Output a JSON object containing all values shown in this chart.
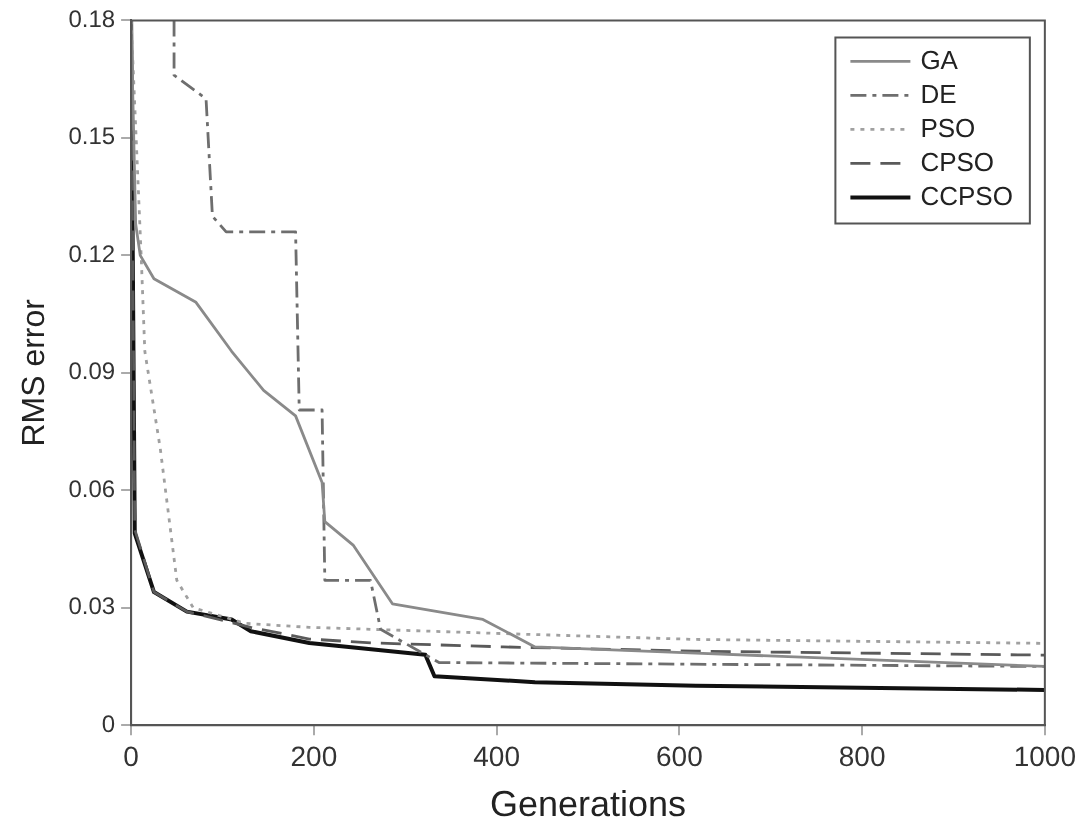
{
  "chart_data": {
    "type": "line",
    "xlabel": "Generations",
    "ylabel": "RMS error",
    "xlim": [
      0,
      1000
    ],
    "xticks": [
      0,
      200,
      400,
      600,
      800,
      1000
    ],
    "ylim": [
      0,
      0.18
    ],
    "yticks": [
      0,
      0.03,
      0.06,
      0.09,
      0.12,
      0.15,
      0.18
    ],
    "grid": false,
    "legend": "top right",
    "series": [
      {
        "name": "GA",
        "color": "#8a8a8a",
        "line_style": "solid",
        "x": [
          0,
          5,
          10,
          25,
          71,
          110,
          145,
          180,
          209,
          212,
          243,
          286,
          385,
          442,
          618,
          1000
        ],
        "values": [
          0.18,
          0.128,
          0.12,
          0.114,
          0.108,
          0.0955,
          0.0855,
          0.079,
          0.062,
          0.052,
          0.046,
          0.031,
          0.027,
          0.02,
          0.0184,
          0.015
        ]
      },
      {
        "name": "DE",
        "color": "#6e6e6e",
        "line_style": "dashdot",
        "x": [
          47,
          47,
          82,
          89,
          104,
          180,
          184,
          209,
          212,
          262,
          273,
          337,
          1000
        ],
        "values": [
          0.18,
          0.166,
          0.16,
          0.13,
          0.126,
          0.126,
          0.0805,
          0.0805,
          0.037,
          0.037,
          0.0245,
          0.016,
          0.015
        ]
      },
      {
        "name": "PSO",
        "color": "#a0a0a0",
        "line_style": "dotted",
        "x": [
          0,
          11,
          15,
          32,
          50,
          68,
          125,
          195,
          407,
          618,
          1000
        ],
        "values": [
          0.18,
          0.12,
          0.0955,
          0.0705,
          0.037,
          0.03,
          0.026,
          0.025,
          0.0234,
          0.0219,
          0.0209
        ]
      },
      {
        "name": "CPSO",
        "color": "#5a5a5a",
        "line_style": "dashed",
        "x": [
          0,
          4,
          25,
          61,
          131,
          195,
          265,
          407,
          618,
          1000
        ],
        "values": [
          0.18,
          0.05,
          0.034,
          0.029,
          0.025,
          0.022,
          0.021,
          0.02,
          0.0189,
          0.0179
        ]
      },
      {
        "name": "CCPSO",
        "color": "#111111",
        "line_style": "solid",
        "x": [
          0,
          4,
          25,
          61,
          110,
          131,
          195,
          322,
          332,
          442,
          618,
          1000
        ],
        "values": [
          0.18,
          0.049,
          0.034,
          0.029,
          0.027,
          0.024,
          0.021,
          0.018,
          0.0125,
          0.011,
          0.0101,
          0.009
        ]
      }
    ]
  }
}
